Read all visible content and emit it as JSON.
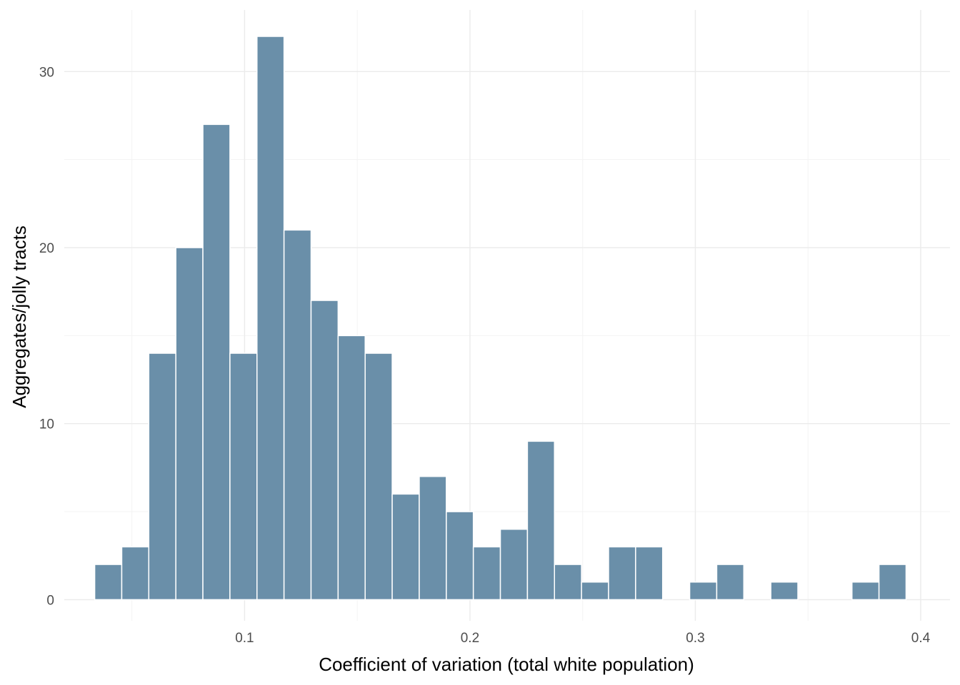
{
  "chart_data": {
    "type": "bar",
    "subtype": "histogram",
    "xlabel": "Coefficient of variation (total white population)",
    "ylabel": "Aggregates/jolly tracts",
    "xlim": [
      0.02,
      0.413
    ],
    "ylim": [
      -1.2,
      33.5
    ],
    "x_ticks": [
      0.1,
      0.2,
      0.3,
      0.4
    ],
    "x_tick_labels": [
      "0.1",
      "0.2",
      "0.3",
      "0.4"
    ],
    "y_ticks": [
      0,
      10,
      20,
      30
    ],
    "y_tick_labels": [
      "0",
      "10",
      "20",
      "30"
    ],
    "grid": true,
    "bin_width": 0.012,
    "first_bin_start": 0.0335,
    "counts": [
      2,
      3,
      14,
      20,
      27,
      14,
      32,
      21,
      17,
      15,
      14,
      6,
      7,
      5,
      3,
      4,
      9,
      2,
      1,
      3,
      3,
      0,
      1,
      2,
      0,
      1,
      0,
      0,
      1,
      2
    ],
    "bar_color": "#6a8fa9"
  }
}
